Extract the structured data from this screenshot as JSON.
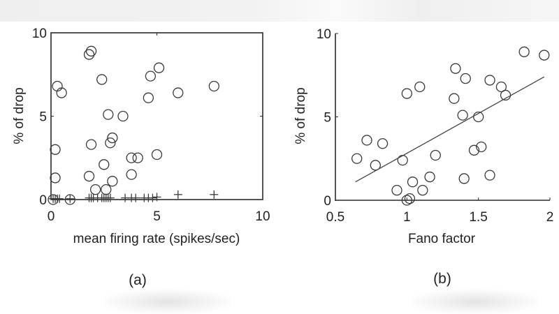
{
  "chart_data": [
    {
      "panel": "(a)",
      "type": "scatter",
      "xlabel": "mean firing rate (spikes/sec)",
      "ylabel": "% of drop",
      "xlim": [
        0,
        10
      ],
      "ylim": [
        0,
        10
      ],
      "xticks": [
        "0",
        "5",
        "10"
      ],
      "yticks": [
        "0",
        "5",
        "10"
      ],
      "grid": false,
      "box": true,
      "series": [
        {
          "name": "circles",
          "marker": "o",
          "points": [
            [
              1.8,
              8.7
            ],
            [
              1.9,
              8.9
            ],
            [
              2.4,
              7.2
            ],
            [
              5.1,
              7.9
            ],
            [
              4.7,
              7.4
            ],
            [
              0.3,
              6.8
            ],
            [
              0.5,
              6.4
            ],
            [
              4.6,
              6.1
            ],
            [
              6.0,
              6.4
            ],
            [
              7.7,
              6.8
            ],
            [
              2.7,
              5.1
            ],
            [
              3.4,
              5.0
            ],
            [
              0.2,
              3.0
            ],
            [
              1.9,
              3.3
            ],
            [
              2.9,
              3.7
            ],
            [
              2.8,
              3.4
            ],
            [
              3.8,
              2.5
            ],
            [
              4.1,
              2.5
            ],
            [
              5.0,
              2.7
            ],
            [
              2.5,
              2.1
            ],
            [
              0.2,
              1.3
            ],
            [
              1.8,
              1.4
            ],
            [
              3.8,
              1.5
            ],
            [
              2.9,
              1.1
            ],
            [
              2.1,
              0.6
            ],
            [
              2.6,
              0.6
            ],
            [
              0.1,
              0.0
            ],
            [
              0.9,
              0.0
            ]
          ]
        },
        {
          "name": "crosses",
          "marker": "+",
          "points": [
            [
              0.1,
              0.05
            ],
            [
              0.2,
              0.05
            ],
            [
              0.3,
              0.05
            ],
            [
              0.4,
              0.05
            ],
            [
              0.9,
              0.05
            ],
            [
              1.8,
              0.1
            ],
            [
              1.9,
              0.1
            ],
            [
              2.0,
              0.1
            ],
            [
              2.2,
              0.1
            ],
            [
              2.4,
              0.1
            ],
            [
              2.5,
              0.1
            ],
            [
              2.6,
              0.1
            ],
            [
              2.7,
              0.1
            ],
            [
              2.8,
              0.1
            ],
            [
              3.5,
              0.1
            ],
            [
              3.8,
              0.1
            ],
            [
              4.0,
              0.1
            ],
            [
              4.4,
              0.1
            ],
            [
              4.6,
              0.1
            ],
            [
              4.8,
              0.1
            ],
            [
              5.0,
              0.15
            ],
            [
              6.0,
              0.3
            ],
            [
              7.7,
              0.3
            ]
          ]
        }
      ]
    },
    {
      "panel": "(b)",
      "type": "scatter",
      "xlabel": "Fano factor",
      "ylabel": "% of drop",
      "xlim": [
        0.5,
        2
      ],
      "ylim": [
        0,
        10
      ],
      "xticks": [
        "0.5",
        "1",
        "1.5",
        "2"
      ],
      "yticks": [
        "0",
        "5",
        "10"
      ],
      "grid": false,
      "box": false,
      "series": [
        {
          "name": "circles",
          "marker": "o",
          "points": [
            [
              1.82,
              8.9
            ],
            [
              1.96,
              8.7
            ],
            [
              1.34,
              7.9
            ],
            [
              1.41,
              7.3
            ],
            [
              1.58,
              7.2
            ],
            [
              1.66,
              6.8
            ],
            [
              1.69,
              6.3
            ],
            [
              1.0,
              6.4
            ],
            [
              1.09,
              6.8
            ],
            [
              1.33,
              6.1
            ],
            [
              1.39,
              5.1
            ],
            [
              1.5,
              5.0
            ],
            [
              0.72,
              3.6
            ],
            [
              0.83,
              3.4
            ],
            [
              1.47,
              3.0
            ],
            [
              1.52,
              3.2
            ],
            [
              0.65,
              2.5
            ],
            [
              0.97,
              2.4
            ],
            [
              1.2,
              2.7
            ],
            [
              0.78,
              2.1
            ],
            [
              1.16,
              1.4
            ],
            [
              1.4,
              1.3
            ],
            [
              1.58,
              1.5
            ],
            [
              1.04,
              1.1
            ],
            [
              0.93,
              0.6
            ],
            [
              1.11,
              0.6
            ],
            [
              1.0,
              0.0
            ],
            [
              1.02,
              0.1
            ]
          ]
        },
        {
          "name": "regression line",
          "marker": "line",
          "points": [
            [
              0.64,
              1.1
            ],
            [
              1.96,
              7.4
            ]
          ]
        }
      ]
    }
  ]
}
